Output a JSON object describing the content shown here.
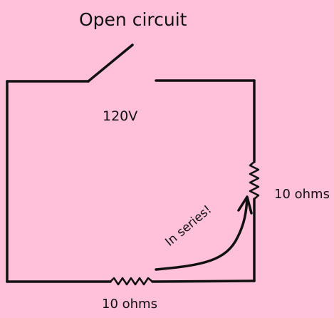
{
  "diagram": {
    "title": "Open circuit",
    "voltage_label": "120V",
    "resistor_right_label": "10 ohms",
    "resistor_bottom_label": "10 ohms",
    "annotation": "In series!",
    "colors": {
      "background": "#ffc0d9",
      "ink": "#111111"
    },
    "components": {
      "switch": "open-switch-icon",
      "resistors": [
        "resistor-right",
        "resistor-bottom"
      ],
      "arrow": "curved-arrow-icon"
    }
  }
}
